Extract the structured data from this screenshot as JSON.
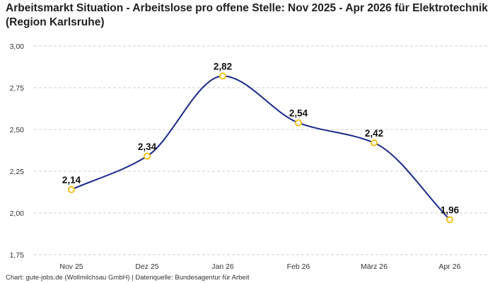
{
  "title": "Arbeitsmarkt Situation - Arbeitslose pro offene Stelle: Nov 2025 - Apr 2026 für Elektrotechnik (Region Karlsruhe)",
  "footer": "Chart: gute-jobs.de (Wollmilchsau GmbH) | Datenquelle: Bundesagentur für Arbeit",
  "colors": {
    "line": "#1a2a8c",
    "marker_stroke": "#f2c01e",
    "marker_fill": "#ffffff",
    "grid": "#cfcfcf"
  },
  "chart_data": {
    "type": "line",
    "title": "Arbeitsmarkt Situation - Arbeitslose pro offene Stelle: Nov 2025 - Apr 2026 für Elektrotechnik (Region Karlsruhe)",
    "xlabel": "",
    "ylabel": "",
    "categories": [
      "Nov 25",
      "Dez 25",
      "Jan 26",
      "Feb 26",
      "März 26",
      "Apr 26"
    ],
    "series": [
      {
        "values": [
          2.14,
          2.34,
          2.82,
          2.54,
          2.42,
          1.96
        ],
        "labels": [
          "2,14",
          "2,34",
          "2,82",
          "2,54",
          "2,42",
          "1,96"
        ]
      }
    ],
    "ylim": [
      1.75,
      3.0
    ],
    "yticks": [
      1.75,
      2.0,
      2.25,
      2.5,
      2.75,
      3.0
    ],
    "ytick_labels": [
      "1,75",
      "2,00",
      "2,25",
      "2,50",
      "2,75",
      "3,00"
    ],
    "grid": "horizontal dashed",
    "smooth": true,
    "legend": "none"
  }
}
